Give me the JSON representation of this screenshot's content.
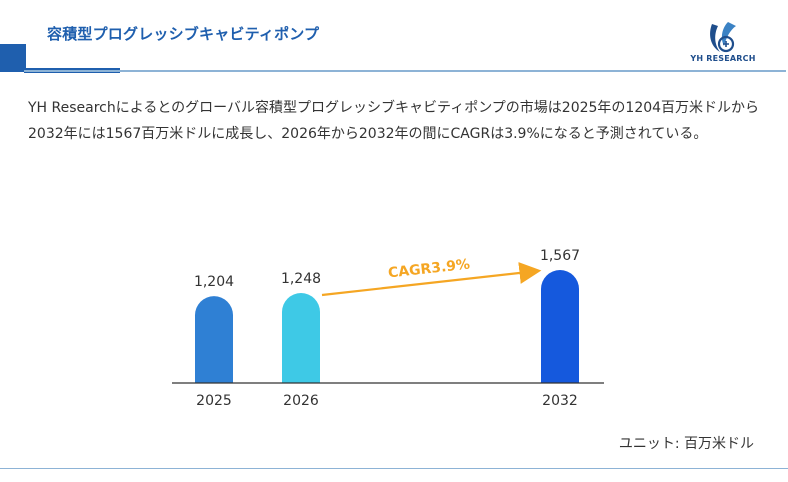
{
  "header": {
    "title": "容積型プログレッシブキャビティポンプ",
    "logo_text": "YH RESEARCH"
  },
  "description": "YH Researchによるとのグローバル容積型プログレッシブキャビティポンプの市場は2025年の1204百万米ドルから2032年には1567百万米ドルに成長し、2026年から2032年の間にCAGRは3.9%になると予測されている。",
  "unit_label": "ユニット: 百万米ドル",
  "colors": {
    "brand": "#1f5fae",
    "bar_2025": "#2f80d4",
    "bar_2026": "#3ec9e6",
    "bar_2032": "#1559dd",
    "cagr_arrow": "#f5a623"
  },
  "chart_data": {
    "type": "bar",
    "categories": [
      "2025",
      "2026",
      "2032"
    ],
    "values": [
      1204,
      1248,
      1567
    ],
    "value_labels": [
      "1,204",
      "1,248",
      "1,567"
    ],
    "annotation": "CAGR3.9%",
    "annotation_from": "2026",
    "annotation_to": "2032",
    "ylim": [
      0,
      1567
    ],
    "grid": false,
    "legend": "none"
  }
}
